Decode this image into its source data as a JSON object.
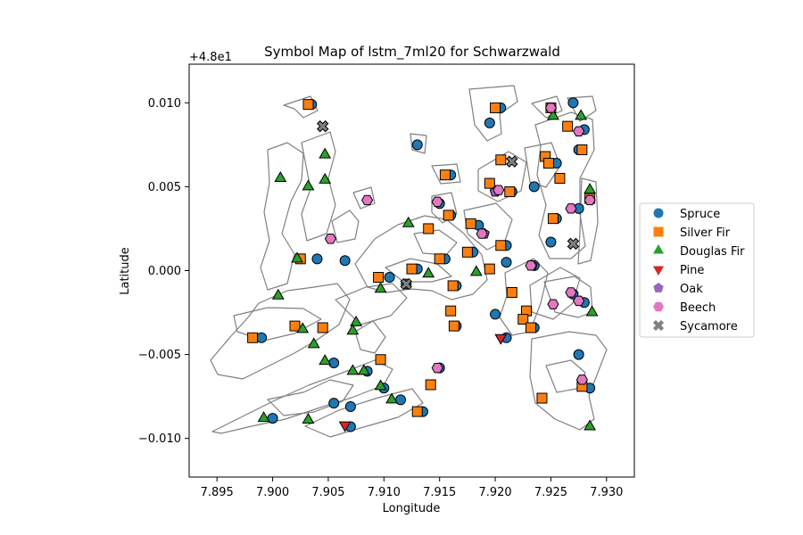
{
  "chart_data": {
    "type": "scatter",
    "title": "Symbol Map of lstm_7ml20 for Schwarzwald",
    "xlabel": "Longitude",
    "ylabel": "Latitude",
    "y_offset_label": "+4.8e1",
    "xlim": [
      7.8925,
      7.9325
    ],
    "ylim": [
      -0.0123,
      0.0123
    ],
    "x_ticks": [
      7.895,
      7.9,
      7.905,
      7.91,
      7.915,
      7.92,
      7.925,
      7.93
    ],
    "x_tick_labels": [
      "7.895",
      "7.900",
      "7.905",
      "7.910",
      "7.915",
      "7.920",
      "7.925",
      "7.930"
    ],
    "y_ticks": [
      -0.01,
      -0.005,
      0.0,
      0.005,
      0.01
    ],
    "y_tick_labels": [
      "−0.010",
      "−0.005",
      "0.000",
      "0.005",
      "0.010"
    ],
    "grid": false,
    "legend_position": "outside-right",
    "series": [
      {
        "name": "Spruce",
        "marker": "circle",
        "color": "#1f77b4",
        "points": [
          [
            7.9035,
            0.0099
          ],
          [
            7.913,
            0.0075
          ],
          [
            7.9195,
            0.0088
          ],
          [
            7.9205,
            0.0097
          ],
          [
            7.927,
            0.01
          ],
          [
            7.928,
            0.0084
          ],
          [
            7.9275,
            0.0072
          ],
          [
            7.9255,
            0.0064
          ],
          [
            7.9235,
            0.005
          ],
          [
            7.916,
            0.0057
          ],
          [
            7.9215,
            0.0047
          ],
          [
            7.9195,
            0.0052
          ],
          [
            7.916,
            0.0033
          ],
          [
            7.915,
            0.004
          ],
          [
            7.9185,
            0.0027
          ],
          [
            7.921,
            0.0015
          ],
          [
            7.921,
            0.0005
          ],
          [
            7.9235,
            0.0003
          ],
          [
            7.9255,
            0.0031
          ],
          [
            7.925,
            0.0017
          ],
          [
            7.9275,
            0.0037
          ],
          [
            7.9285,
            0.0043
          ],
          [
            7.904,
            0.0007
          ],
          [
            7.9065,
            0.0006
          ],
          [
            7.9105,
            -0.0004
          ],
          [
            7.913,
            0.0001
          ],
          [
            7.9155,
            0.0007
          ],
          [
            7.918,
            0.0011
          ],
          [
            7.9165,
            -0.0009
          ],
          [
            7.92,
            -0.0026
          ],
          [
            7.921,
            -0.004
          ],
          [
            7.9235,
            -0.0034
          ],
          [
            7.928,
            -0.0019
          ],
          [
            7.9275,
            -0.005
          ],
          [
            7.9285,
            -0.007
          ],
          [
            7.899,
            -0.004
          ],
          [
            7.9055,
            -0.0055
          ],
          [
            7.9085,
            -0.006
          ],
          [
            7.91,
            -0.007
          ],
          [
            7.9115,
            -0.0077
          ],
          [
            7.9055,
            -0.0079
          ],
          [
            7.907,
            -0.0081
          ],
          [
            7.907,
            -0.0093
          ],
          [
            7.9,
            -0.0088
          ],
          [
            7.9135,
            -0.0084
          ],
          [
            7.9165,
            -0.0033
          ],
          [
            7.912,
            -0.0008
          ],
          [
            7.915,
            -0.0058
          ],
          [
            7.927,
            -0.0014
          ]
        ]
      },
      {
        "name": "Silver Fir",
        "marker": "square",
        "color": "#ff7f0e",
        "points": [
          [
            7.9032,
            0.0099
          ],
          [
            7.92,
            0.0097
          ],
          [
            7.925,
            0.0097
          ],
          [
            7.9265,
            0.0086
          ],
          [
            7.9278,
            0.0072
          ],
          [
            7.9205,
            0.0066
          ],
          [
            7.9245,
            0.0068
          ],
          [
            7.9248,
            0.0064
          ],
          [
            7.9258,
            0.0055
          ],
          [
            7.9213,
            0.0047
          ],
          [
            7.9195,
            0.0052
          ],
          [
            7.9155,
            0.0057
          ],
          [
            7.9158,
            0.0033
          ],
          [
            7.914,
            0.0025
          ],
          [
            7.9178,
            0.0028
          ],
          [
            7.9205,
            0.0015
          ],
          [
            7.9252,
            0.0031
          ],
          [
            7.9285,
            0.0043
          ],
          [
            7.9025,
            0.0007
          ],
          [
            7.9095,
            -0.0004
          ],
          [
            7.9125,
            0.0001
          ],
          [
            7.915,
            0.0007
          ],
          [
            7.9175,
            0.0011
          ],
          [
            7.9162,
            -0.0009
          ],
          [
            7.9195,
            0.0001
          ],
          [
            7.9215,
            -0.0013
          ],
          [
            7.9228,
            -0.0024
          ],
          [
            7.9225,
            -0.0029
          ],
          [
            7.9232,
            -0.0034
          ],
          [
            7.916,
            -0.0024
          ],
          [
            7.9163,
            -0.0033
          ],
          [
            7.902,
            -0.0033
          ],
          [
            7.9045,
            -0.0034
          ],
          [
            7.8982,
            -0.004
          ],
          [
            7.9097,
            -0.0053
          ],
          [
            7.9142,
            -0.0068
          ],
          [
            7.913,
            -0.0084
          ],
          [
            7.9242,
            -0.0076
          ],
          [
            7.9278,
            -0.0069
          ]
        ]
      },
      {
        "name": "Douglas Fir",
        "marker": "triangle-up",
        "color": "#2ca02c",
        "points": [
          [
            7.9252,
            0.0092
          ],
          [
            7.9277,
            0.0092
          ],
          [
            7.9047,
            0.0069
          ],
          [
            7.9007,
            0.0055
          ],
          [
            7.9032,
            0.005
          ],
          [
            7.9047,
            0.0054
          ],
          [
            7.9285,
            0.0048
          ],
          [
            7.9122,
            0.0028
          ],
          [
            7.9022,
            0.0007
          ],
          [
            7.914,
            -0.0002
          ],
          [
            7.9183,
            -0.0001
          ],
          [
            7.9097,
            -0.0011
          ],
          [
            7.9005,
            -0.0015
          ],
          [
            7.9075,
            -0.0031
          ],
          [
            7.9027,
            -0.0035
          ],
          [
            7.9037,
            -0.0044
          ],
          [
            7.9072,
            -0.0036
          ],
          [
            7.9047,
            -0.0054
          ],
          [
            7.9072,
            -0.006
          ],
          [
            7.9082,
            -0.006
          ],
          [
            7.9097,
            -0.0069
          ],
          [
            7.9107,
            -0.0077
          ],
          [
            7.8992,
            -0.0088
          ],
          [
            7.9032,
            -0.0089
          ],
          [
            7.9287,
            -0.0025
          ],
          [
            7.9285,
            -0.0093
          ]
        ]
      },
      {
        "name": "Pine",
        "marker": "triangle-down",
        "color": "#d62728",
        "points": [
          [
            7.9205,
            -0.004
          ],
          [
            7.9065,
            -0.0092
          ]
        ]
      },
      {
        "name": "Oak",
        "marker": "pentagon",
        "color": "#9467bd",
        "points": [
          [
            7.92,
            0.0047
          ],
          [
            7.919,
            0.0022
          ],
          [
            7.9233,
            0.0003
          ]
        ]
      },
      {
        "name": "Beech",
        "marker": "hexagon",
        "color": "#e377c2",
        "points": [
          [
            7.925,
            0.0097
          ],
          [
            7.9275,
            0.0083
          ],
          [
            7.9085,
            0.0042
          ],
          [
            7.9148,
            0.0041
          ],
          [
            7.9203,
            0.0048
          ],
          [
            7.9268,
            0.0037
          ],
          [
            7.9285,
            0.0042
          ],
          [
            7.9052,
            0.0019
          ],
          [
            7.9188,
            0.0022
          ],
          [
            7.9232,
            0.0003
          ],
          [
            7.9252,
            -0.002
          ],
          [
            7.9268,
            -0.0013
          ],
          [
            7.9275,
            -0.0018
          ],
          [
            7.9278,
            -0.0065
          ],
          [
            7.9148,
            -0.0058
          ]
        ]
      },
      {
        "name": "Sycamore",
        "marker": "x",
        "color": "#7f7f7f",
        "points": [
          [
            7.9045,
            0.0086
          ],
          [
            7.9215,
            0.0065
          ],
          [
            7.927,
            0.0016
          ],
          [
            7.912,
            -0.0008
          ]
        ]
      }
    ]
  }
}
